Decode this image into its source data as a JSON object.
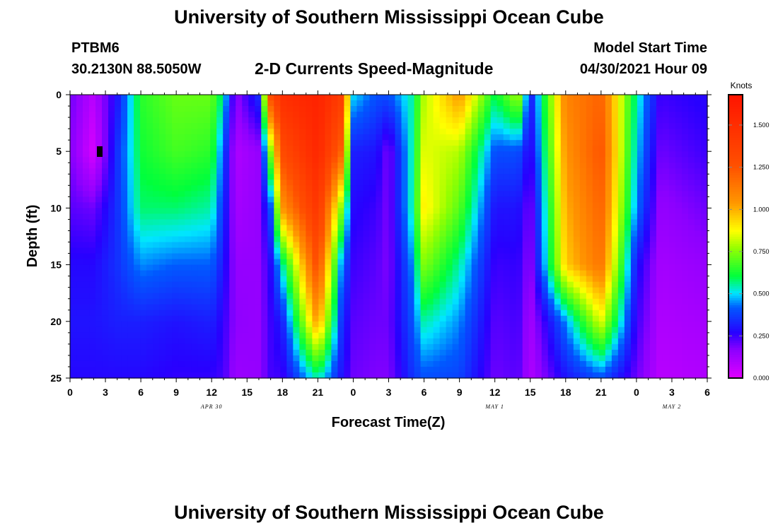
{
  "page": {
    "top_title": "University of Southern Mississippi Ocean Cube",
    "bottom_title": "University of Southern Mississippi Ocean Cube",
    "station": "PTBM6",
    "location": "30.2130N  88.5050W",
    "model_start_label": "Model Start Time",
    "model_start_value": "04/30/2021 Hour 09"
  },
  "chart_data": {
    "type": "heatmap",
    "title": "2-D Currents Speed-Magnitude",
    "xlabel": "Forecast Time(Z)",
    "ylabel": "Depth (ft)",
    "x_range_hours": [
      0,
      54
    ],
    "ylim": [
      0,
      25
    ],
    "x_ticks": [
      "0",
      "3",
      "6",
      "9",
      "12",
      "15",
      "18",
      "21",
      "0",
      "3",
      "6",
      "9",
      "12",
      "15",
      "18",
      "21",
      "0",
      "3",
      "6"
    ],
    "y_ticks": [
      "0",
      "5",
      "10",
      "15",
      "20",
      "25"
    ],
    "date_labels": [
      {
        "text": "APR  30",
        "hour": 12
      },
      {
        "text": "MAY  1",
        "hour": 36
      },
      {
        "text": "MAY  2",
        "hour": 51
      }
    ],
    "colorbar": {
      "unit": "Knots",
      "min": 0,
      "max": 1.68,
      "labels": [
        "0.000",
        "0.250",
        "0.500",
        "0.750",
        "1.000",
        "1.250",
        "1.500"
      ],
      "values": [
        0,
        0.25,
        0.5,
        0.75,
        1.0,
        1.25,
        1.5
      ]
    },
    "depth_rows_ft": [
      0,
      5,
      10,
      15,
      20,
      25
    ],
    "series": [
      {
        "time_hours": 0,
        "speed_knots": [
          0.2,
          0.18,
          0.22,
          0.28,
          0.3,
          0.28
        ]
      },
      {
        "time_hours": 2,
        "speed_knots": [
          0.08,
          0.02,
          0.2,
          0.28,
          0.3,
          0.28
        ]
      },
      {
        "time_hours": 4,
        "speed_knots": [
          0.3,
          0.35,
          0.35,
          0.35,
          0.32,
          0.28
        ]
      },
      {
        "time_hours": 6,
        "speed_knots": [
          0.65,
          0.62,
          0.58,
          0.45,
          0.32,
          0.28
        ]
      },
      {
        "time_hours": 9,
        "speed_knots": [
          0.72,
          0.68,
          0.58,
          0.42,
          0.3,
          0.26
        ]
      },
      {
        "time_hours": 12,
        "speed_knots": [
          0.72,
          0.65,
          0.55,
          0.42,
          0.32,
          0.26
        ]
      },
      {
        "time_hours": 13,
        "speed_knots": [
          0.55,
          0.4,
          0.35,
          0.3,
          0.26,
          0.24
        ]
      },
      {
        "time_hours": 14,
        "speed_knots": [
          0.15,
          0.1,
          0.12,
          0.15,
          0.16,
          0.14
        ]
      },
      {
        "time_hours": 16,
        "speed_knots": [
          0.35,
          0.15,
          0.15,
          0.15,
          0.15,
          0.15
        ]
      },
      {
        "time_hours": 17,
        "speed_knots": [
          1.3,
          0.75,
          0.4,
          0.28,
          0.25,
          0.24
        ]
      },
      {
        "time_hours": 18,
        "speed_knots": [
          1.5,
          1.3,
          1.05,
          0.55,
          0.32,
          0.25
        ]
      },
      {
        "time_hours": 21,
        "speed_knots": [
          1.58,
          1.55,
          1.45,
          1.3,
          1.05,
          0.55
        ]
      },
      {
        "time_hours": 23,
        "speed_knots": [
          1.4,
          1.2,
          0.75,
          0.45,
          0.35,
          0.3
        ]
      },
      {
        "time_hours": 24,
        "speed_knots": [
          0.5,
          0.32,
          0.28,
          0.25,
          0.22,
          0.2
        ]
      },
      {
        "time_hours": 26,
        "speed_knots": [
          0.4,
          0.3,
          0.25,
          0.22,
          0.2,
          0.18
        ]
      },
      {
        "time_hours": 27,
        "speed_knots": [
          0.4,
          0.18,
          0.18,
          0.18,
          0.2,
          0.18
        ]
      },
      {
        "time_hours": 29,
        "speed_knots": [
          0.55,
          0.55,
          0.55,
          0.45,
          0.4,
          0.35
        ]
      },
      {
        "time_hours": 30,
        "speed_knots": [
          0.8,
          0.85,
          0.9,
          0.75,
          0.55,
          0.4
        ]
      },
      {
        "time_hours": 33,
        "speed_knots": [
          1.05,
          0.8,
          0.7,
          0.55,
          0.45,
          0.38
        ]
      },
      {
        "time_hours": 36,
        "speed_knots": [
          0.6,
          0.4,
          0.3,
          0.25,
          0.22,
          0.2
        ]
      },
      {
        "time_hours": 38,
        "speed_knots": [
          0.8,
          0.4,
          0.3,
          0.26,
          0.24,
          0.22
        ]
      },
      {
        "time_hours": 39,
        "speed_knots": [
          0.3,
          0.25,
          0.18,
          0.15,
          0.12,
          0.1
        ]
      },
      {
        "time_hours": 42,
        "speed_knots": [
          1.1,
          1.05,
          1.0,
          0.95,
          0.45,
          0.3
        ]
      },
      {
        "time_hours": 45,
        "speed_knots": [
          1.2,
          1.25,
          1.2,
          1.15,
          0.85,
          0.4
        ]
      },
      {
        "time_hours": 48,
        "speed_knots": [
          0.55,
          0.5,
          0.45,
          0.3,
          0.25,
          0.2
        ]
      },
      {
        "time_hours": 50,
        "speed_knots": [
          0.25,
          0.2,
          0.15,
          0.12,
          0.1,
          0.08
        ]
      },
      {
        "time_hours": 54,
        "speed_knots": [
          0.28,
          0.25,
          0.2,
          0.15,
          0.12,
          0.1
        ]
      }
    ]
  }
}
